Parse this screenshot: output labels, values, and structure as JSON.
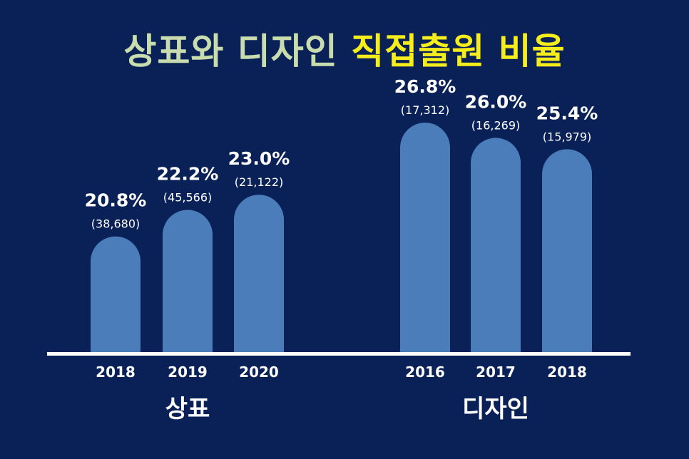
{
  "title": {
    "part1": "상표와 디자인",
    "part2": "직접출원 비율"
  },
  "colors": {
    "background": "#0a2157",
    "bar": "#4a7dba",
    "baseline": "#ffffff",
    "title_part1": "#c8dcae",
    "title_part2": "#f5ee1c",
    "text": "#ffffff"
  },
  "chart_data": [
    {
      "type": "bar",
      "group_label": "상표",
      "categories": [
        "2018",
        "2019",
        "2020"
      ],
      "values": [
        20.8,
        22.2,
        23.0
      ],
      "value_labels": [
        "20.8%",
        "22.2%",
        "23.0%"
      ],
      "count_labels": [
        "(38,680)",
        "(45,566)",
        "(21,122)"
      ]
    },
    {
      "type": "bar",
      "group_label": "디자인",
      "categories": [
        "2016",
        "2017",
        "2018"
      ],
      "values": [
        26.8,
        26.0,
        25.4
      ],
      "value_labels": [
        "26.8%",
        "26.0%",
        "25.4%"
      ],
      "count_labels": [
        "(17,312)",
        "(16,269)",
        "(15,979)"
      ]
    }
  ]
}
